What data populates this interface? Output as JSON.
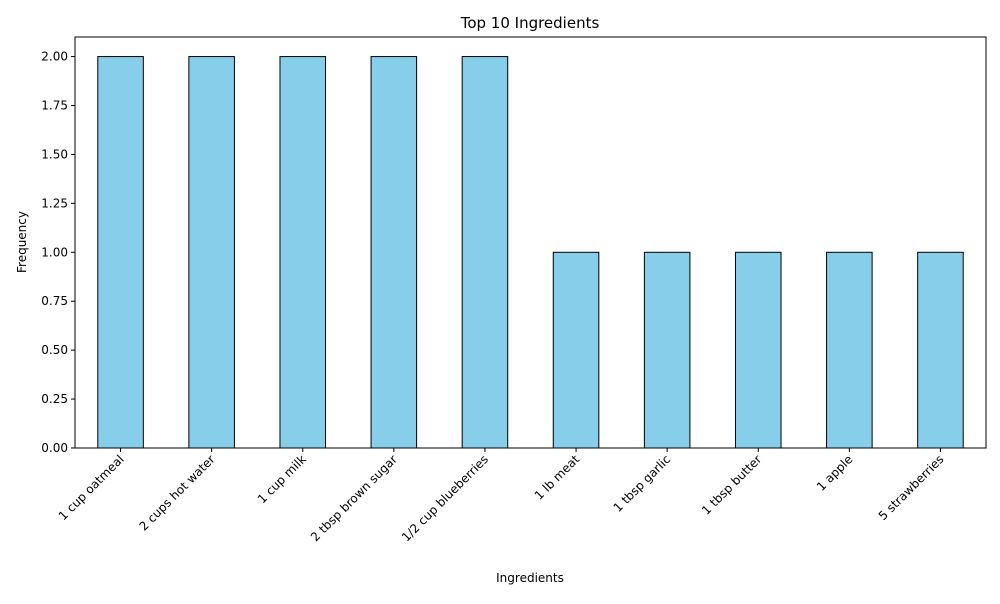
{
  "chart_data": {
    "type": "bar",
    "title": "Top 10 Ingredients",
    "xlabel": "Ingredients",
    "ylabel": "Frequency",
    "categories": [
      "1 cup oatmeal",
      "2 cups hot water",
      "1 cup milk",
      "2 tbsp brown sugar",
      "1/2 cup blueberries",
      "1 lb meat",
      "1 tbsp garlic",
      "1 tbsp butter",
      "1 apple",
      "5 strawberries"
    ],
    "values": [
      2,
      2,
      2,
      2,
      2,
      1,
      1,
      1,
      1,
      1
    ],
    "ylim": [
      0,
      2.1
    ],
    "yticks": [
      "0.00",
      "0.25",
      "0.50",
      "0.75",
      "1.00",
      "1.25",
      "1.50",
      "1.75",
      "2.00"
    ],
    "grid": false,
    "legend": false,
    "colors": {
      "bar_fill": "#87ceeb",
      "bar_edge": "#000000"
    }
  }
}
